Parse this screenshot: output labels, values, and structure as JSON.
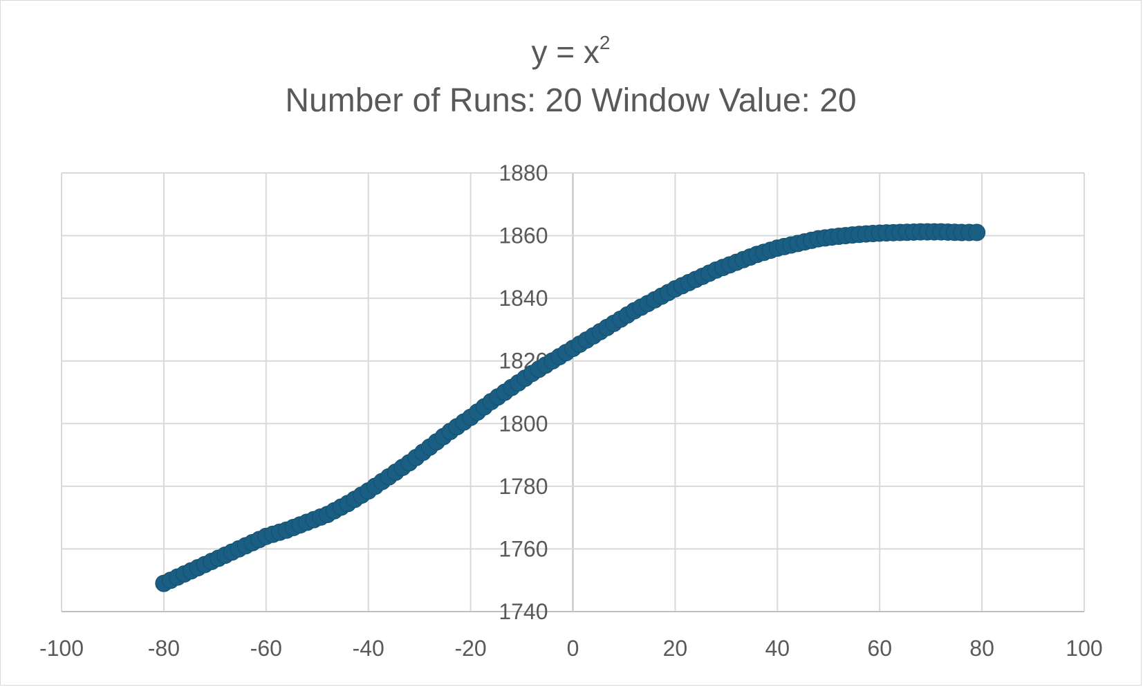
{
  "chart_data": {
    "type": "scatter",
    "title_line1_base": "y = x",
    "title_line1_sup": "2",
    "title_line2": "Number of Runs: 20 Window Value: 20",
    "xlabel": "",
    "ylabel": "",
    "xlim": [
      -100,
      100
    ],
    "ylim": [
      1740,
      1880
    ],
    "x_ticks": [
      -100,
      -80,
      -60,
      -40,
      -20,
      0,
      20,
      40,
      60,
      80,
      100
    ],
    "y_ticks": [
      1740,
      1760,
      1780,
      1800,
      1820,
      1840,
      1860,
      1880
    ],
    "x_tick_labels": [
      "-100",
      "-80",
      "-60",
      "-40",
      "-20",
      "0",
      "20",
      "40",
      "60",
      "80",
      "100"
    ],
    "y_tick_labels": [
      "1740",
      "1760",
      "1780",
      "1800",
      "1820",
      "1840",
      "1860",
      "1880"
    ],
    "grid": true,
    "legend": "none",
    "marker_color": "#1a5e83",
    "grid_color": "#d9d9d9",
    "series": [
      {
        "x": [
          -80,
          -76,
          -72,
          -68,
          -64,
          -60,
          -56,
          -52,
          -48,
          -44,
          -40,
          -36,
          -32,
          -28,
          -24,
          -20,
          -16,
          -12,
          -8,
          -4,
          0,
          4,
          8,
          12,
          16,
          20,
          24,
          28,
          32,
          36,
          40,
          44,
          48,
          52,
          56,
          60,
          64,
          68,
          72,
          76,
          79
        ],
        "y": [
          1749,
          1752,
          1755,
          1758,
          1761,
          1764,
          1766,
          1768.5,
          1771,
          1774.5,
          1778.5,
          1783,
          1787.5,
          1792.5,
          1797.5,
          1802,
          1807,
          1811.5,
          1816,
          1820,
          1824,
          1828,
          1832,
          1836,
          1839.5,
          1843,
          1846,
          1849,
          1851.5,
          1854,
          1856,
          1857.5,
          1859,
          1859.8,
          1860.4,
          1860.8,
          1861,
          1861.2,
          1861.2,
          1861,
          1861
        ]
      }
    ]
  }
}
